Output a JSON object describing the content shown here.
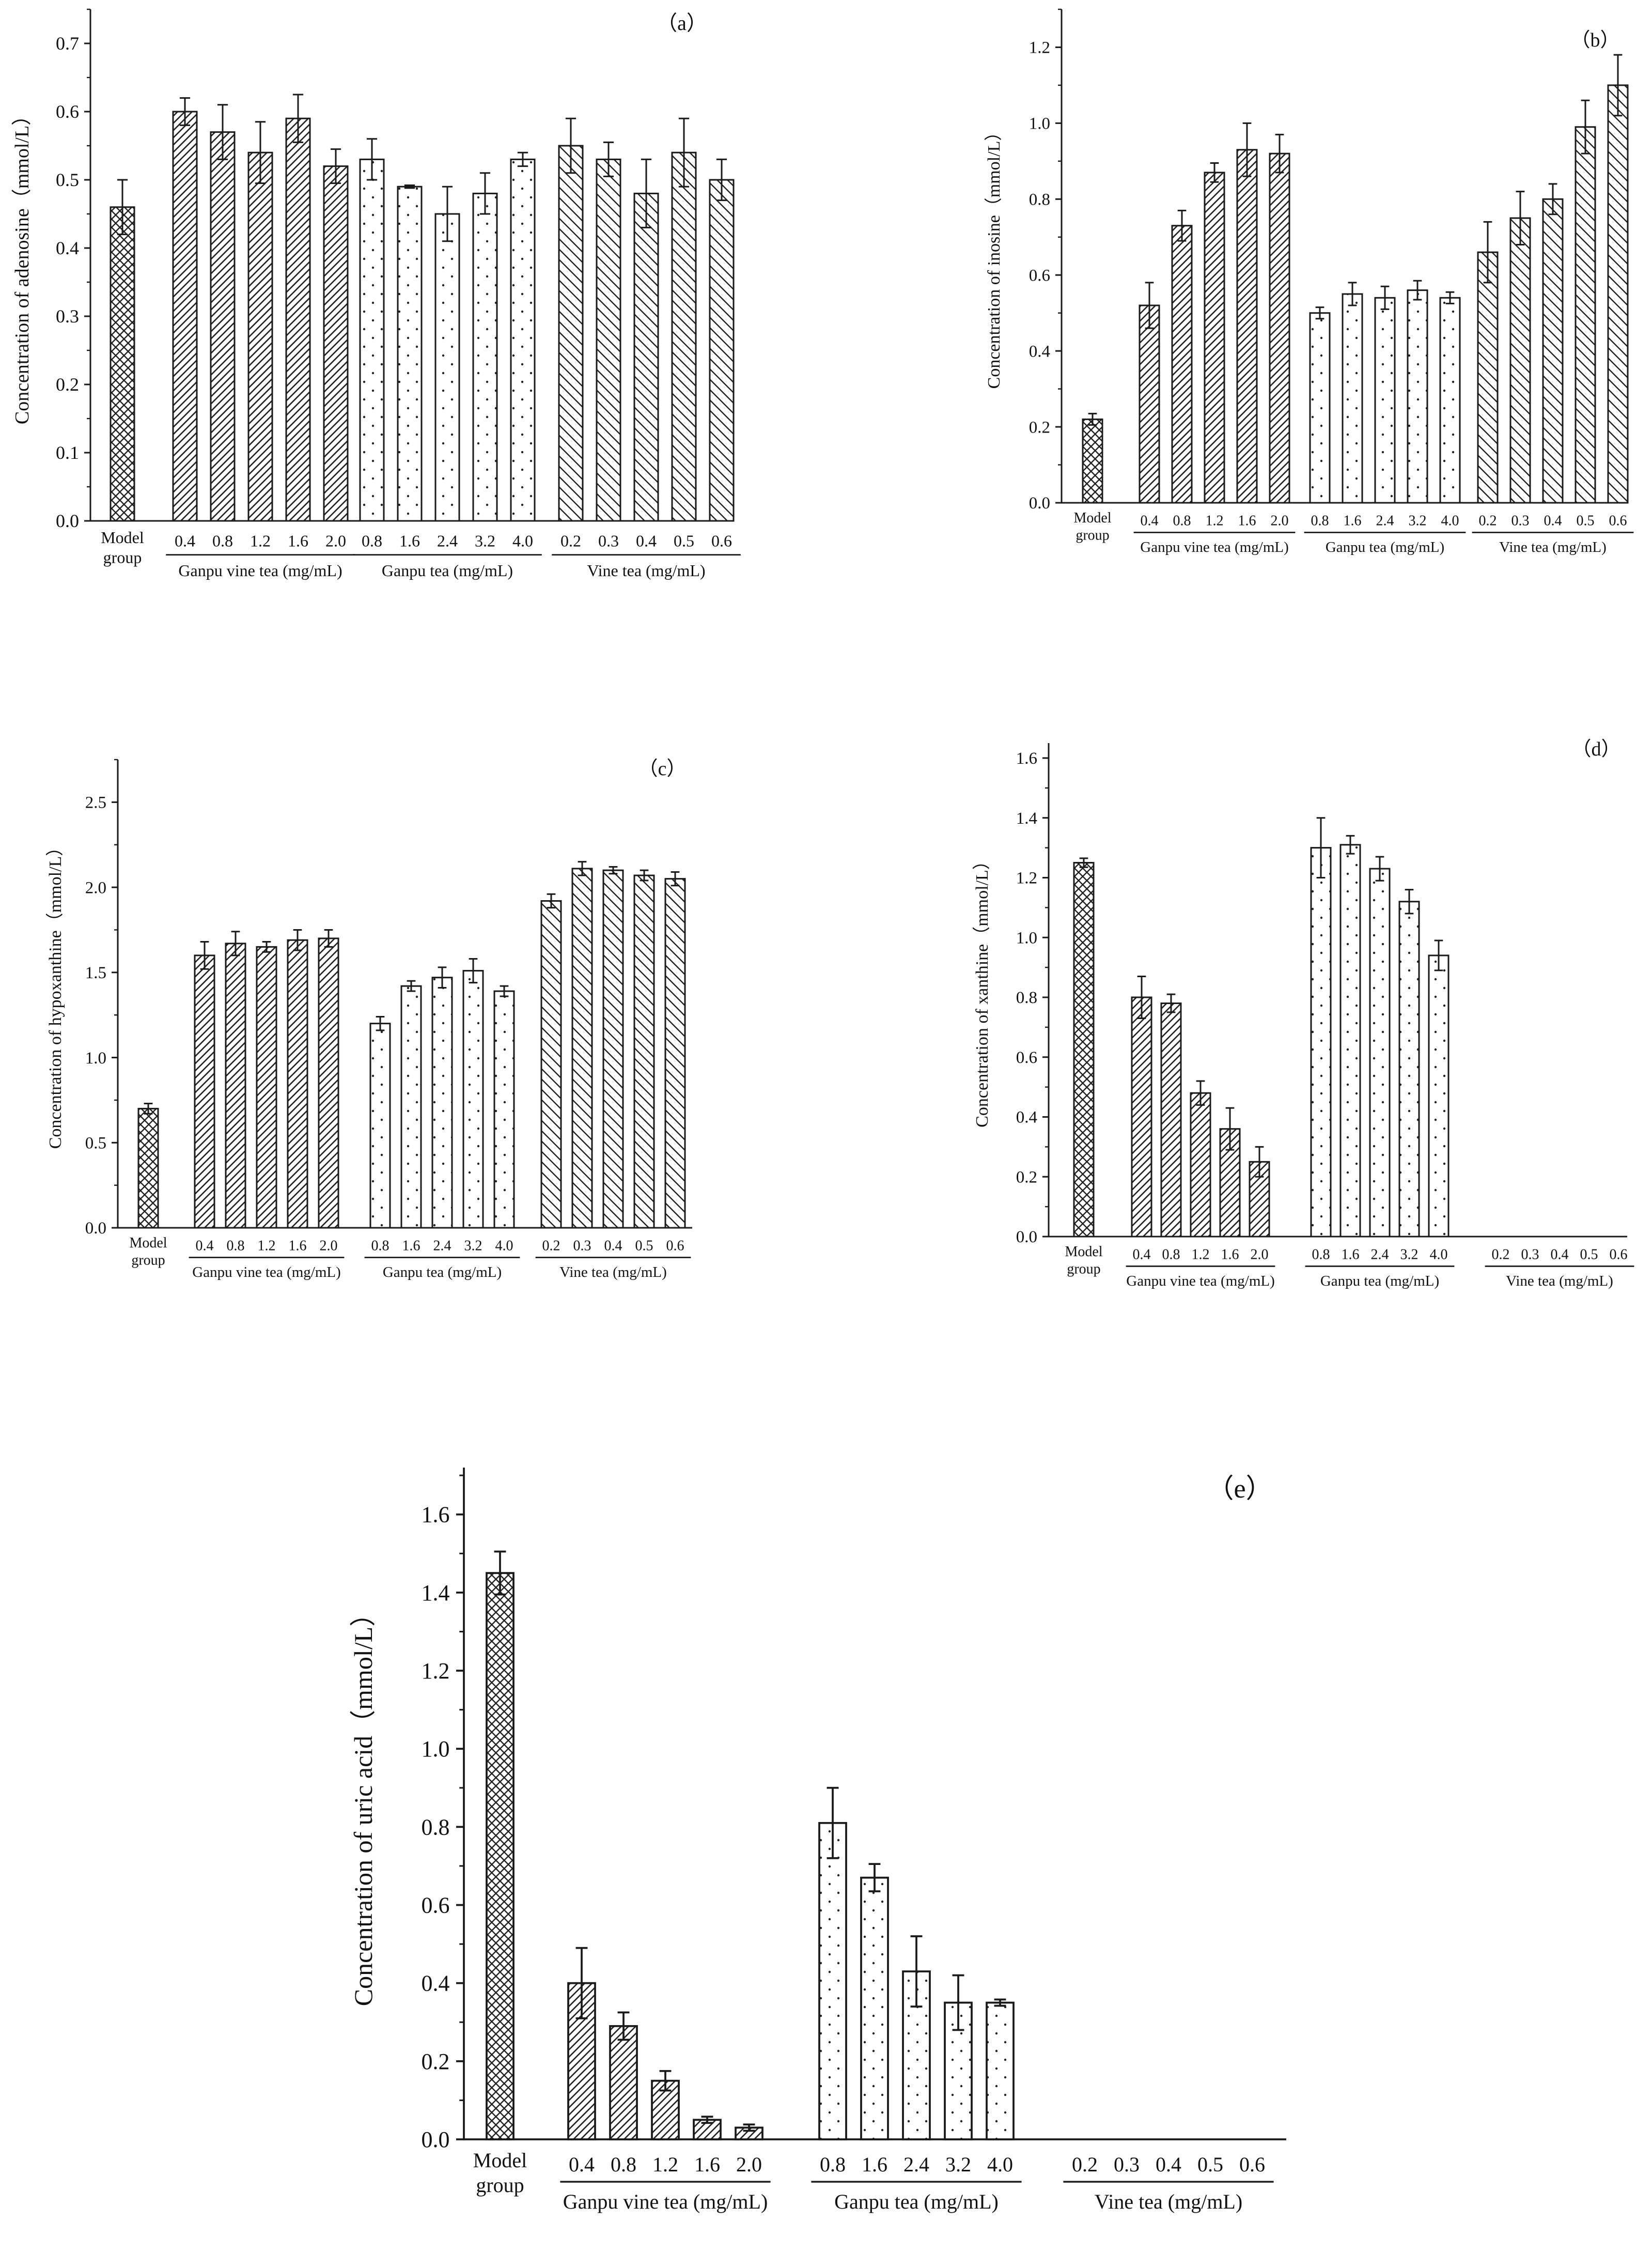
{
  "figure": {
    "bar_color": "#1a1a1a",
    "background": "#ffffff"
  },
  "chart_data": [
    {
      "id": "a",
      "type": "bar",
      "panel_label": "（a）",
      "ylabel": "Concentration of adenosine（mmol/L）",
      "ylim": [
        0,
        0.75
      ],
      "yticks": [
        0.0,
        0.1,
        0.2,
        0.3,
        0.4,
        0.5,
        0.6,
        0.7
      ],
      "tick_format": 1,
      "model": {
        "label_line1": "Model",
        "label_line2": "group",
        "value": 0.46,
        "error": 0.04
      },
      "groups": [
        {
          "name": "Ganpu vine tea (mg/mL)",
          "categories": [
            "0.4",
            "0.8",
            "1.2",
            "1.6",
            "2.0"
          ],
          "values": [
            0.6,
            0.57,
            0.54,
            0.59,
            0.52
          ],
          "errors": [
            0.02,
            0.04,
            0.045,
            0.035,
            0.025
          ],
          "pattern": "hatch"
        },
        {
          "name": "Ganpu tea (mg/mL)",
          "categories": [
            "0.8",
            "1.6",
            "2.4",
            "3.2",
            "4.0"
          ],
          "values": [
            0.53,
            0.49,
            0.45,
            0.48,
            0.53
          ],
          "errors": [
            0.03,
            0.002,
            0.04,
            0.03,
            0.01
          ],
          "pattern": "dots"
        },
        {
          "name": "Vine tea (mg/mL)",
          "categories": [
            "0.2",
            "0.3",
            "0.4",
            "0.5",
            "0.6"
          ],
          "values": [
            0.55,
            0.53,
            0.48,
            0.54,
            0.5
          ],
          "errors": [
            0.04,
            0.025,
            0.05,
            0.05,
            0.03
          ],
          "pattern": "hatch2"
        }
      ]
    },
    {
      "id": "b",
      "type": "bar",
      "panel_label": "（b）",
      "ylabel": "Concentration of inosine（mmol/L）",
      "ylim": [
        0,
        1.3
      ],
      "yticks": [
        0.0,
        0.2,
        0.4,
        0.6,
        0.8,
        1.0,
        1.2
      ],
      "tick_format": 1,
      "model": {
        "label_line1": "Model",
        "label_line2": "group",
        "value": 0.22,
        "error": 0.015
      },
      "groups": [
        {
          "name": "Ganpu vine tea (mg/mL)",
          "categories": [
            "0.4",
            "0.8",
            "1.2",
            "1.6",
            "2.0"
          ],
          "values": [
            0.52,
            0.73,
            0.87,
            0.93,
            0.92
          ],
          "errors": [
            0.06,
            0.04,
            0.025,
            0.07,
            0.05
          ],
          "pattern": "hatch"
        },
        {
          "name": "Ganpu tea (mg/mL)",
          "categories": [
            "0.8",
            "1.6",
            "2.4",
            "3.2",
            "4.0"
          ],
          "values": [
            0.5,
            0.55,
            0.54,
            0.56,
            0.54
          ],
          "errors": [
            0.015,
            0.03,
            0.03,
            0.025,
            0.015
          ],
          "pattern": "dots"
        },
        {
          "name": "Vine tea (mg/mL)",
          "categories": [
            "0.2",
            "0.3",
            "0.4",
            "0.5",
            "0.6"
          ],
          "values": [
            0.66,
            0.75,
            0.8,
            0.99,
            1.1
          ],
          "errors": [
            0.08,
            0.07,
            0.04,
            0.07,
            0.08
          ],
          "pattern": "hatch2"
        }
      ]
    },
    {
      "id": "c",
      "type": "bar",
      "panel_label": "（c）",
      "ylabel": "Concentration of hypoxanthine（mmol/L）",
      "ylim": [
        0,
        2.75
      ],
      "yticks": [
        0.0,
        0.5,
        1.0,
        1.5,
        2.0,
        2.5
      ],
      "tick_format": 1,
      "model": {
        "label_line1": "Model",
        "label_line2": "group",
        "value": 0.7,
        "error": 0.03
      },
      "groups": [
        {
          "name": "Ganpu vine tea (mg/mL)",
          "categories": [
            "0.4",
            "0.8",
            "1.2",
            "1.6",
            "2.0"
          ],
          "values": [
            1.6,
            1.67,
            1.65,
            1.69,
            1.7
          ],
          "errors": [
            0.08,
            0.07,
            0.03,
            0.06,
            0.05
          ],
          "pattern": "hatch"
        },
        {
          "name": "Ganpu tea (mg/mL)",
          "categories": [
            "0.8",
            "1.6",
            "2.4",
            "3.2",
            "4.0"
          ],
          "values": [
            1.2,
            1.42,
            1.47,
            1.51,
            1.39
          ],
          "errors": [
            0.04,
            0.03,
            0.06,
            0.07,
            0.03
          ],
          "pattern": "dots"
        },
        {
          "name": "Vine tea (mg/mL)",
          "categories": [
            "0.2",
            "0.3",
            "0.4",
            "0.5",
            "0.6"
          ],
          "values": [
            1.92,
            2.11,
            2.1,
            2.07,
            2.05
          ],
          "errors": [
            0.04,
            0.04,
            0.02,
            0.03,
            0.04
          ],
          "pattern": "hatch2"
        }
      ]
    },
    {
      "id": "d",
      "type": "bar",
      "panel_label": "（d）",
      "ylabel": "Concentration of xanthine（mmol/L）",
      "ylim": [
        0,
        1.65
      ],
      "yticks": [
        0.0,
        0.2,
        0.4,
        0.6,
        0.8,
        1.0,
        1.2,
        1.4,
        1.6
      ],
      "tick_format": 1,
      "model": {
        "label_line1": "Model",
        "label_line2": "group",
        "value": 1.25,
        "error": 0.015
      },
      "groups": [
        {
          "name": "Ganpu vine tea (mg/mL)",
          "categories": [
            "0.4",
            "0.8",
            "1.2",
            "1.6",
            "2.0"
          ],
          "values": [
            0.8,
            0.78,
            0.48,
            0.36,
            0.25
          ],
          "errors": [
            0.07,
            0.03,
            0.04,
            0.07,
            0.05
          ],
          "pattern": "hatch"
        },
        {
          "name": "Ganpu tea (mg/mL)",
          "categories": [
            "0.8",
            "1.6",
            "2.4",
            "3.2",
            "4.0"
          ],
          "values": [
            1.3,
            1.31,
            1.23,
            1.12,
            0.94
          ],
          "errors": [
            0.1,
            0.03,
            0.04,
            0.04,
            0.05
          ],
          "pattern": "dots"
        },
        {
          "name": "Vine tea (mg/mL)",
          "categories": [
            "0.2",
            "0.3",
            "0.4",
            "0.5",
            "0.6"
          ],
          "values": [
            0,
            0,
            0,
            0,
            0
          ],
          "errors": [
            0,
            0,
            0,
            0,
            0
          ],
          "pattern": "hatch2"
        }
      ]
    },
    {
      "id": "e",
      "type": "bar",
      "panel_label": "（e）",
      "ylabel": "Concentration of uric acid（mmol/L）",
      "ylim": [
        0,
        1.72
      ],
      "yticks": [
        0.0,
        0.2,
        0.4,
        0.6,
        0.8,
        1.0,
        1.2,
        1.4,
        1.6
      ],
      "tick_format": 1,
      "model": {
        "label_line1": "Model",
        "label_line2": "group",
        "value": 1.45,
        "error": 0.055
      },
      "groups": [
        {
          "name": "Ganpu vine tea (mg/mL)",
          "categories": [
            "0.4",
            "0.8",
            "1.2",
            "1.6",
            "2.0"
          ],
          "values": [
            0.4,
            0.29,
            0.15,
            0.05,
            0.03
          ],
          "errors": [
            0.09,
            0.035,
            0.025,
            0.008,
            0.008
          ],
          "pattern": "hatch"
        },
        {
          "name": "Ganpu tea (mg/mL)",
          "categories": [
            "0.8",
            "1.6",
            "2.4",
            "3.2",
            "4.0"
          ],
          "values": [
            0.81,
            0.67,
            0.43,
            0.35,
            0.35
          ],
          "errors": [
            0.09,
            0.035,
            0.09,
            0.07,
            0.008
          ],
          "pattern": "dots"
        },
        {
          "name": "Vine tea (mg/mL)",
          "categories": [
            "0.2",
            "0.3",
            "0.4",
            "0.5",
            "0.6"
          ],
          "values": [
            0,
            0,
            0,
            0,
            0
          ],
          "errors": [
            0,
            0,
            0,
            0,
            0
          ],
          "pattern": "hatch2"
        }
      ]
    }
  ]
}
